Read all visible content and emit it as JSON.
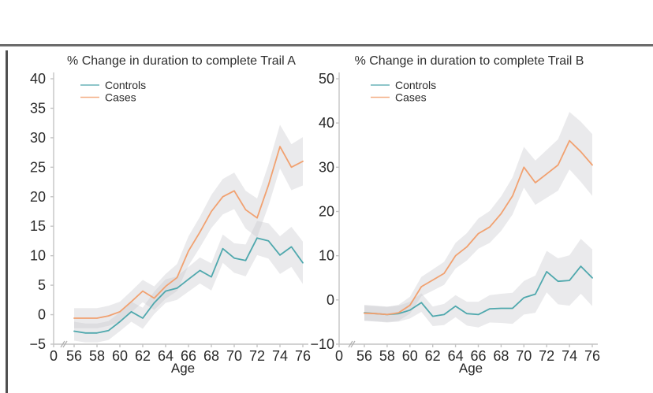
{
  "page": {
    "background": "#ffffff",
    "top_rule_color": "#6b6b6b",
    "left_bar_color": "#4f4f4f"
  },
  "chart_data": [
    {
      "id": "trail-a",
      "type": "line",
      "title": "% Change in duration to complete Trail A",
      "xlabel": "Age",
      "x": [
        56,
        57,
        58,
        59,
        60,
        61,
        62,
        63,
        64,
        65,
        66,
        67,
        68,
        69,
        70,
        71,
        72,
        73,
        74,
        75,
        76
      ],
      "x_tick_labels": [
        "0",
        "56",
        "58",
        "60",
        "62",
        "64",
        "66",
        "68",
        "70",
        "72",
        "74",
        "76"
      ],
      "x_axis_break": true,
      "ylim": [
        -5,
        40
      ],
      "y_ticks": [
        -5,
        0,
        5,
        10,
        15,
        20,
        25,
        30,
        35,
        40
      ],
      "grid": false,
      "legend_position": "top-left",
      "band_color": "#c7c7cc",
      "band_opacity": 0.38,
      "axis_color": "#c4c4c4",
      "tick_text_color": "#2b2b2b",
      "series": [
        {
          "name": "Controls",
          "color": "#4fa8ad",
          "values": [
            -2.8,
            -3.1,
            -3.1,
            -2.7,
            -1.2,
            0.5,
            -0.6,
            2.0,
            4.0,
            4.5,
            6.0,
            7.5,
            6.4,
            11.2,
            9.6,
            9.2,
            13.0,
            12.5,
            10.1,
            11.5,
            8.8
          ],
          "ci_halfwidth": [
            1.6,
            1.6,
            1.6,
            1.6,
            1.6,
            1.7,
            1.8,
            1.9,
            2.0,
            2.0,
            2.1,
            2.2,
            2.3,
            2.4,
            2.5,
            2.7,
            2.9,
            3.0,
            3.2,
            3.4,
            3.6
          ]
        },
        {
          "name": "Cases",
          "color": "#f1a170",
          "values": [
            -0.6,
            -0.6,
            -0.6,
            -0.2,
            0.5,
            2.2,
            4.0,
            2.8,
            4.8,
            6.3,
            10.8,
            14.0,
            17.5,
            20.0,
            21.0,
            17.8,
            16.4,
            22.0,
            28.5,
            25.0,
            26.0
          ],
          "ci_halfwidth": [
            1.7,
            1.7,
            1.7,
            1.7,
            1.7,
            1.8,
            1.9,
            2.0,
            2.1,
            2.3,
            2.5,
            2.6,
            2.8,
            3.0,
            3.1,
            3.2,
            3.3,
            3.5,
            3.7,
            3.9,
            4.1
          ]
        }
      ]
    },
    {
      "id": "trail-b",
      "type": "line",
      "title": "% Change in duration to complete Trail B",
      "xlabel": "Age",
      "x": [
        56,
        57,
        58,
        59,
        60,
        61,
        62,
        63,
        64,
        65,
        66,
        67,
        68,
        69,
        70,
        71,
        72,
        73,
        74,
        75,
        76
      ],
      "x_tick_labels": [
        "0",
        "56",
        "58",
        "60",
        "62",
        "64",
        "66",
        "68",
        "70",
        "72",
        "74",
        "76"
      ],
      "x_axis_break": true,
      "ylim": [
        -10,
        50
      ],
      "y_ticks": [
        -10,
        0,
        10,
        20,
        30,
        40,
        50
      ],
      "grid": false,
      "legend_position": "top-left",
      "band_color": "#c7c7cc",
      "band_opacity": 0.38,
      "axis_color": "#c4c4c4",
      "tick_text_color": "#2b2b2b",
      "series": [
        {
          "name": "Controls",
          "color": "#4fa8ad",
          "values": [
            -2.9,
            -3.1,
            -3.3,
            -3.1,
            -2.3,
            -0.6,
            -3.7,
            -3.3,
            -1.4,
            -3.1,
            -3.3,
            -2.0,
            -1.9,
            -1.9,
            0.5,
            1.3,
            6.4,
            4.2,
            4.4,
            7.6,
            5.0
          ],
          "ci_halfwidth": [
            1.8,
            1.8,
            1.8,
            1.8,
            1.9,
            2.1,
            2.2,
            2.4,
            2.5,
            2.7,
            2.9,
            3.1,
            3.3,
            3.5,
            3.8,
            4.2,
            4.7,
            5.2,
            5.7,
            6.2,
            6.4
          ]
        },
        {
          "name": "Cases",
          "color": "#f1a170",
          "values": [
            -3.0,
            -3.1,
            -3.3,
            -2.9,
            -1.2,
            3.0,
            4.5,
            6.0,
            10.0,
            12.0,
            15.0,
            16.5,
            19.5,
            23.5,
            30.0,
            26.5,
            28.5,
            30.5,
            36.0,
            33.5,
            30.5
          ],
          "ci_halfwidth": [
            1.7,
            1.7,
            1.7,
            1.8,
            1.9,
            2.2,
            2.4,
            2.6,
            2.9,
            3.1,
            3.4,
            3.6,
            3.9,
            4.2,
            4.6,
            5.0,
            5.4,
            5.8,
            6.5,
            6.8,
            7.0
          ]
        }
      ]
    }
  ]
}
